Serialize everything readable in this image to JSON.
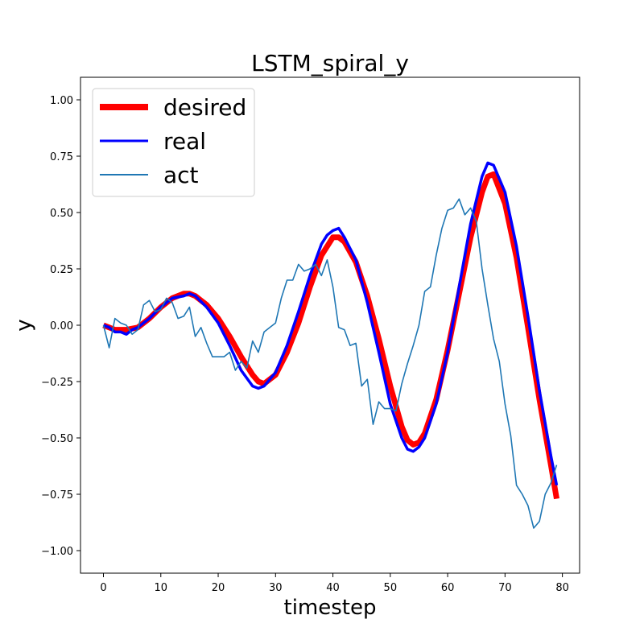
{
  "chart_data": {
    "type": "line",
    "title": "LSTM_spiral_y",
    "xlabel": "timestep",
    "ylabel": "y",
    "xlim": [
      -4,
      83
    ],
    "ylim": [
      -1.1,
      1.1
    ],
    "xticks": [
      0,
      10,
      20,
      30,
      40,
      50,
      60,
      70,
      80
    ],
    "yticks": [
      -1.0,
      -0.75,
      -0.5,
      -0.25,
      0.0,
      0.25,
      0.5,
      0.75,
      1.0
    ],
    "ytick_labels": [
      "−1.00",
      "−0.75",
      "−0.50",
      "−0.25",
      "0.00",
      "0.25",
      "0.50",
      "0.75",
      "1.00"
    ],
    "grid": false,
    "legend_position": "top-left",
    "series": [
      {
        "name": "desired",
        "color": "#ff0000",
        "x": [
          0,
          2,
          4,
          6,
          8,
          10,
          12,
          14,
          15,
          16,
          18,
          20,
          22,
          24,
          26,
          27,
          28,
          30,
          32,
          34,
          36,
          38,
          40,
          41,
          42,
          44,
          46,
          48,
          50,
          52,
          53,
          54,
          55,
          56,
          58,
          60,
          62,
          64,
          66,
          67,
          68,
          70,
          72,
          74,
          76,
          78,
          79
        ],
        "y": [
          0.0,
          -0.02,
          -0.02,
          -0.01,
          0.03,
          0.08,
          0.12,
          0.14,
          0.14,
          0.13,
          0.09,
          0.03,
          -0.05,
          -0.14,
          -0.22,
          -0.25,
          -0.26,
          -0.22,
          -0.12,
          0.01,
          0.17,
          0.31,
          0.39,
          0.39,
          0.37,
          0.28,
          0.13,
          -0.06,
          -0.27,
          -0.45,
          -0.51,
          -0.53,
          -0.52,
          -0.48,
          -0.33,
          -0.11,
          0.14,
          0.39,
          0.59,
          0.66,
          0.67,
          0.54,
          0.3,
          -0.01,
          -0.33,
          -0.62,
          -0.77
        ]
      },
      {
        "name": "real",
        "color": "#0000ff",
        "x": [
          0,
          1,
          2,
          3,
          4,
          5,
          6,
          8,
          10,
          12,
          14,
          15,
          16,
          18,
          20,
          22,
          24,
          26,
          27,
          28,
          30,
          32,
          34,
          36,
          38,
          39,
          40,
          41,
          42,
          44,
          46,
          48,
          50,
          52,
          53,
          54,
          55,
          56,
          58,
          60,
          62,
          64,
          66,
          67,
          68,
          70,
          72,
          74,
          76,
          78,
          79
        ],
        "y": [
          0.0,
          -0.01,
          -0.03,
          -0.03,
          -0.04,
          -0.02,
          -0.01,
          0.03,
          0.08,
          0.12,
          0.13,
          0.14,
          0.13,
          0.08,
          0.01,
          -0.09,
          -0.2,
          -0.27,
          -0.28,
          -0.27,
          -0.21,
          -0.09,
          0.06,
          0.22,
          0.36,
          0.4,
          0.42,
          0.43,
          0.39,
          0.29,
          0.1,
          -0.12,
          -0.35,
          -0.5,
          -0.55,
          -0.56,
          -0.54,
          -0.5,
          -0.35,
          -0.12,
          0.17,
          0.45,
          0.66,
          0.72,
          0.71,
          0.59,
          0.35,
          0.04,
          -0.29,
          -0.58,
          -0.71
        ]
      },
      {
        "name": "act",
        "color": "#1f77b4",
        "x": [
          0,
          1,
          2,
          3,
          4,
          5,
          6,
          7,
          8,
          9,
          10,
          11,
          12,
          13,
          14,
          15,
          16,
          17,
          18,
          19,
          20,
          21,
          22,
          23,
          24,
          25,
          26,
          27,
          28,
          29,
          30,
          31,
          32,
          33,
          34,
          35,
          36,
          37,
          38,
          39,
          40,
          41,
          42,
          43,
          44,
          45,
          46,
          47,
          48,
          49,
          50,
          51,
          52,
          53,
          54,
          55,
          56,
          57,
          58,
          59,
          60,
          61,
          62,
          63,
          64,
          65,
          66,
          67,
          68,
          69,
          70,
          71,
          72,
          73,
          74,
          75,
          76,
          77,
          78,
          79
        ],
        "y": [
          0.0,
          -0.1,
          0.03,
          0.01,
          0.0,
          -0.04,
          -0.02,
          0.09,
          0.11,
          0.06,
          0.07,
          0.12,
          0.1,
          0.03,
          0.04,
          0.08,
          -0.05,
          -0.01,
          -0.08,
          -0.14,
          -0.14,
          -0.14,
          -0.12,
          -0.2,
          -0.16,
          -0.19,
          -0.07,
          -0.12,
          -0.03,
          -0.01,
          0.01,
          0.12,
          0.2,
          0.2,
          0.27,
          0.24,
          0.25,
          0.27,
          0.22,
          0.29,
          0.17,
          -0.01,
          -0.02,
          -0.09,
          -0.08,
          -0.27,
          -0.24,
          -0.44,
          -0.34,
          -0.37,
          -0.37,
          -0.38,
          -0.26,
          -0.17,
          -0.09,
          0.0,
          0.15,
          0.17,
          0.31,
          0.43,
          0.51,
          0.52,
          0.56,
          0.49,
          0.52,
          0.46,
          0.25,
          0.09,
          -0.06,
          -0.16,
          -0.35,
          -0.49,
          -0.71,
          -0.75,
          -0.8,
          -0.9,
          -0.87,
          -0.75,
          -0.7,
          -0.62
        ]
      }
    ]
  }
}
